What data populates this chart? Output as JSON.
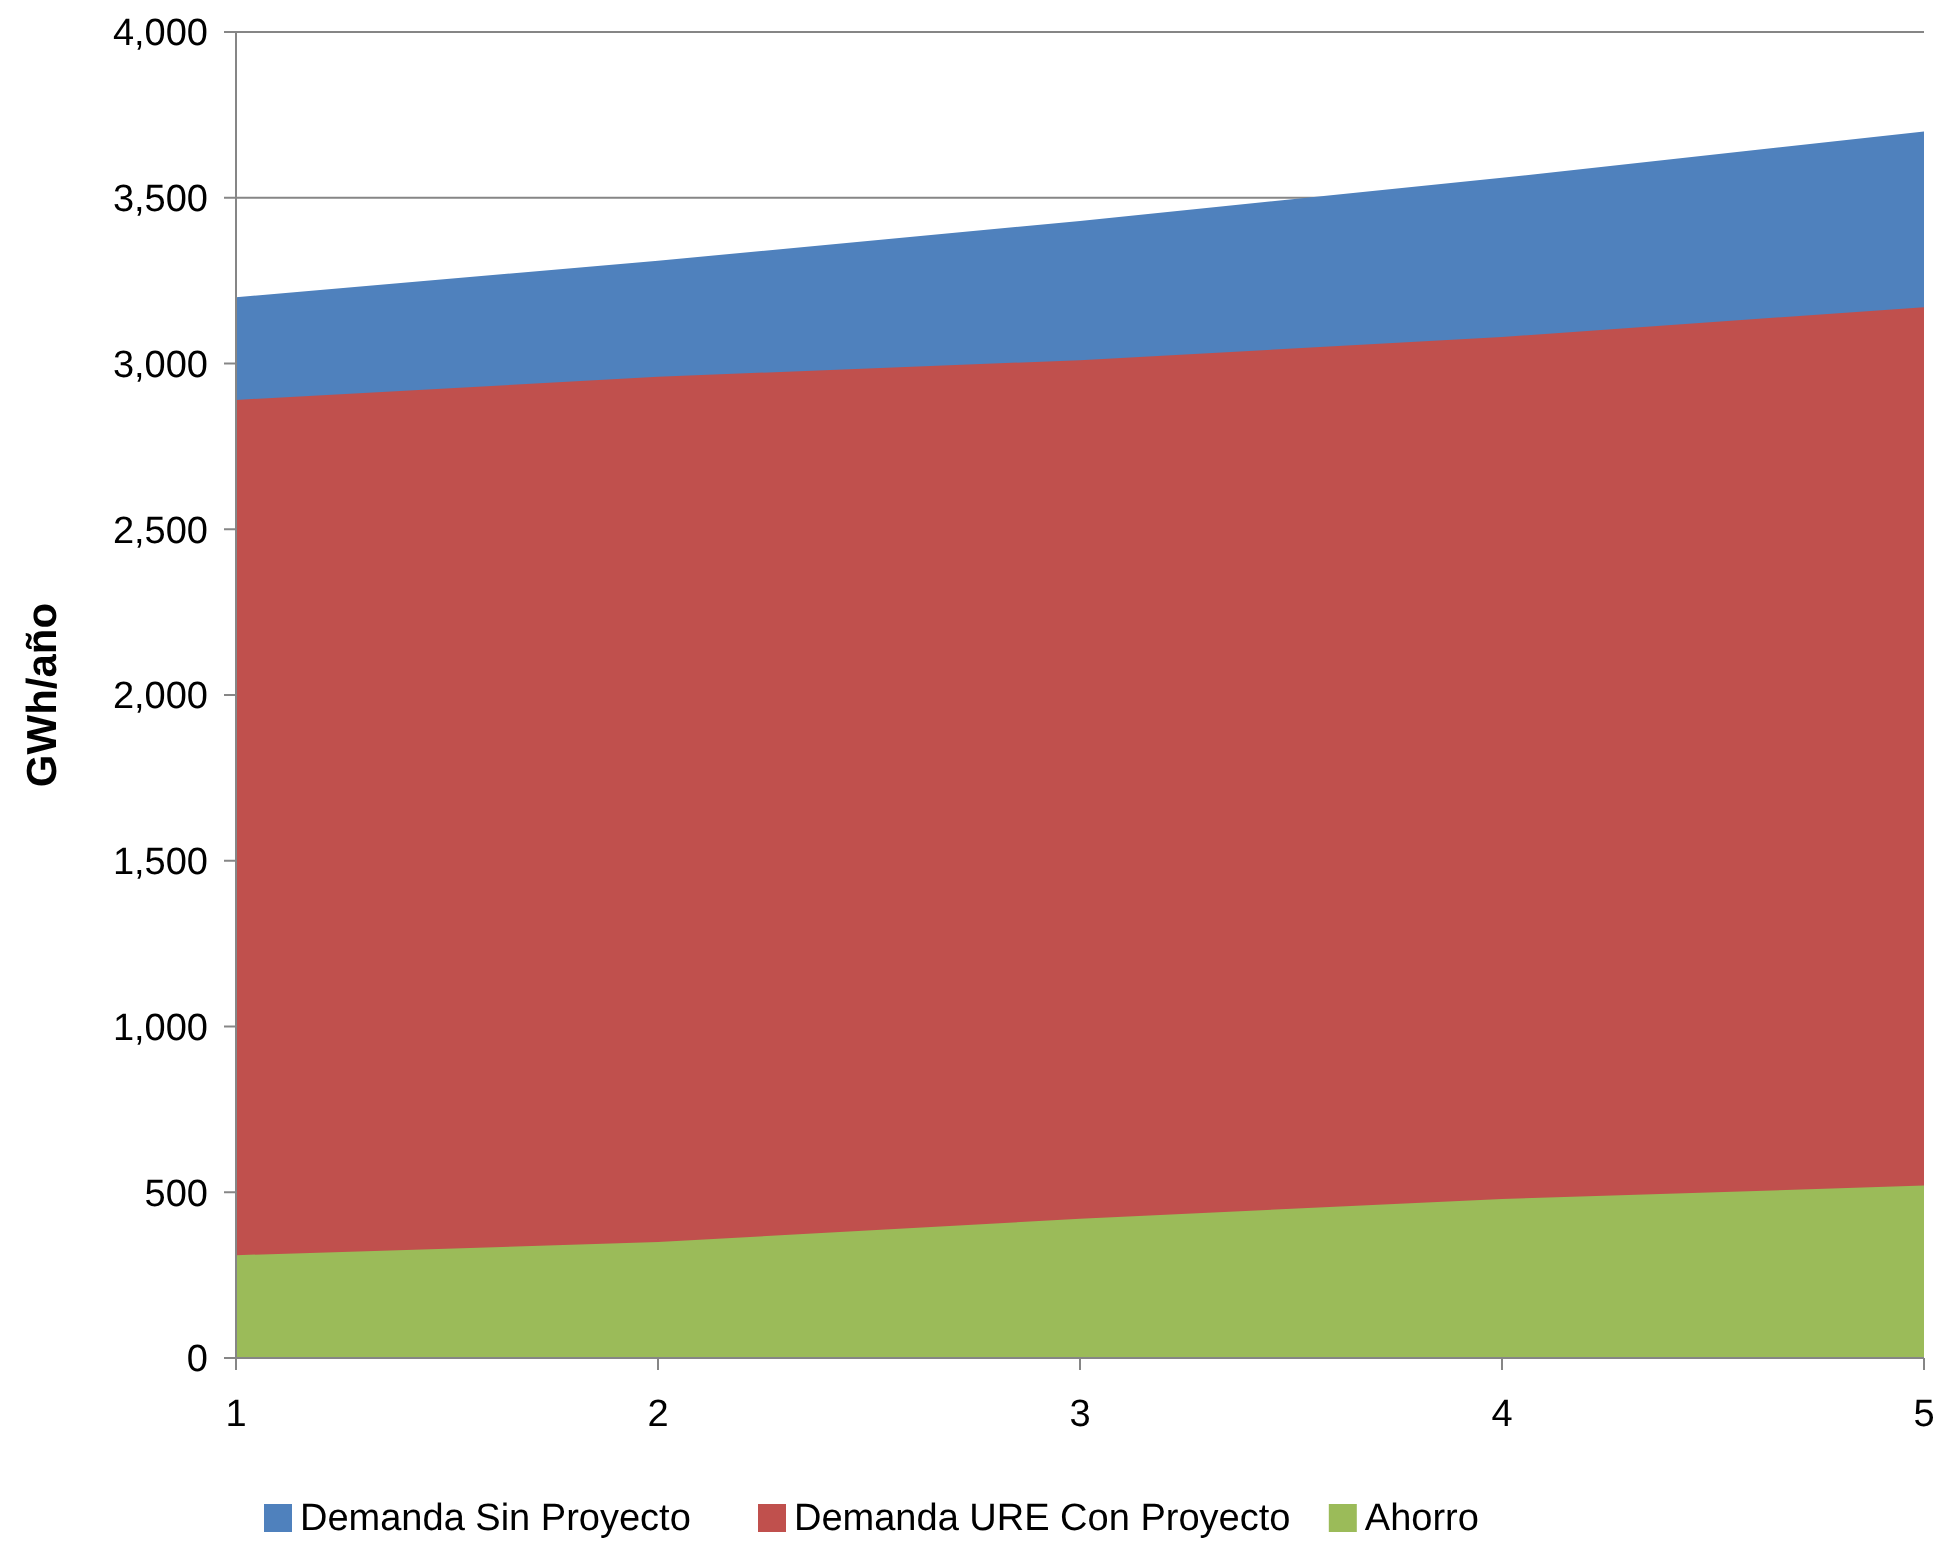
{
  "chart_data": {
    "type": "area",
    "ylabel": "GWh/año",
    "x": [
      1,
      2,
      3,
      4,
      5
    ],
    "xlim": [
      1,
      5
    ],
    "xticks": [
      1,
      2,
      3,
      4,
      5
    ],
    "ylim": [
      0,
      4000
    ],
    "yticks": [
      {
        "value": 0,
        "label": "0"
      },
      {
        "value": 500,
        "label": "500"
      },
      {
        "value": 1000,
        "label": "1,000"
      },
      {
        "value": 1500,
        "label": "1,500"
      },
      {
        "value": 2000,
        "label": "2,000"
      },
      {
        "value": 2500,
        "label": "2,500"
      },
      {
        "value": 3000,
        "label": "3,000"
      },
      {
        "value": 3500,
        "label": "3,500"
      },
      {
        "value": 4000,
        "label": "4,000"
      }
    ],
    "grid": "y",
    "legend": "bottom",
    "series": [
      {
        "name": "Demanda Sin Proyecto",
        "color": "#4f81bd",
        "values": [
          3200,
          3310,
          3430,
          3560,
          3700
        ]
      },
      {
        "name": "Demanda URE Con Proyecto",
        "color": "#c0504d",
        "values": [
          2890,
          2960,
          3010,
          3080,
          3170
        ]
      },
      {
        "name": "Ahorro",
        "color": "#9bbb59",
        "values": [
          310,
          350,
          420,
          480,
          520
        ]
      }
    ]
  }
}
